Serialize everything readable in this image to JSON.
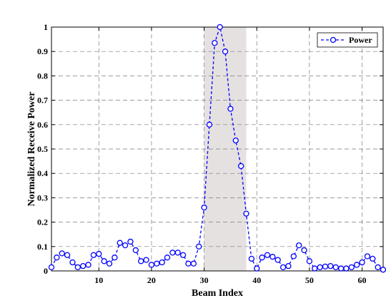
{
  "chart_data": {
    "type": "line",
    "xlabel": "Beam Index",
    "ylabel": "Normalized Receive Power",
    "xlim": [
      1,
      64
    ],
    "ylim": [
      0,
      1
    ],
    "xticks": [
      10,
      20,
      30,
      40,
      50,
      60
    ],
    "yticks": [
      0,
      0.1,
      0.2,
      0.3,
      0.4,
      0.5,
      0.6,
      0.7,
      0.8,
      0.9,
      1
    ],
    "ytick_labels": [
      "0",
      "0.1",
      "0.2",
      "0.3",
      "0.4",
      "0.5",
      "0.6",
      "0.7",
      "0.8",
      "0.9",
      "1"
    ],
    "grid": true,
    "legend_position": "top-right",
    "highlight_region": {
      "x0": 30,
      "x1": 38,
      "color": "#e6e1e1"
    },
    "series": [
      {
        "name": "Power",
        "color": "#0000ff",
        "line_style": "dashed",
        "marker": "circle",
        "x": [
          1,
          2,
          3,
          4,
          5,
          6,
          7,
          8,
          9,
          10,
          11,
          12,
          13,
          14,
          15,
          16,
          17,
          18,
          19,
          20,
          21,
          22,
          23,
          24,
          25,
          26,
          27,
          28,
          29,
          30,
          31,
          32,
          33,
          34,
          35,
          36,
          37,
          38,
          39,
          40,
          41,
          42,
          43,
          44,
          45,
          46,
          47,
          48,
          49,
          50,
          51,
          52,
          53,
          54,
          55,
          56,
          57,
          58,
          59,
          60,
          61,
          62,
          63,
          64
        ],
        "values": [
          0.015,
          0.055,
          0.072,
          0.065,
          0.035,
          0.015,
          0.02,
          0.025,
          0.065,
          0.07,
          0.04,
          0.03,
          0.055,
          0.115,
          0.105,
          0.12,
          0.085,
          0.04,
          0.045,
          0.025,
          0.03,
          0.035,
          0.055,
          0.075,
          0.075,
          0.065,
          0.03,
          0.03,
          0.1,
          0.26,
          0.6,
          0.935,
          1.0,
          0.9,
          0.665,
          0.535,
          0.43,
          0.235,
          0.05,
          0.01,
          0.055,
          0.065,
          0.058,
          0.045,
          0.015,
          0.02,
          0.06,
          0.105,
          0.085,
          0.04,
          0.01,
          0.015,
          0.018,
          0.02,
          0.015,
          0.01,
          0.01,
          0.015,
          0.025,
          0.035,
          0.06,
          0.05,
          0.015,
          0.005
        ]
      }
    ]
  }
}
